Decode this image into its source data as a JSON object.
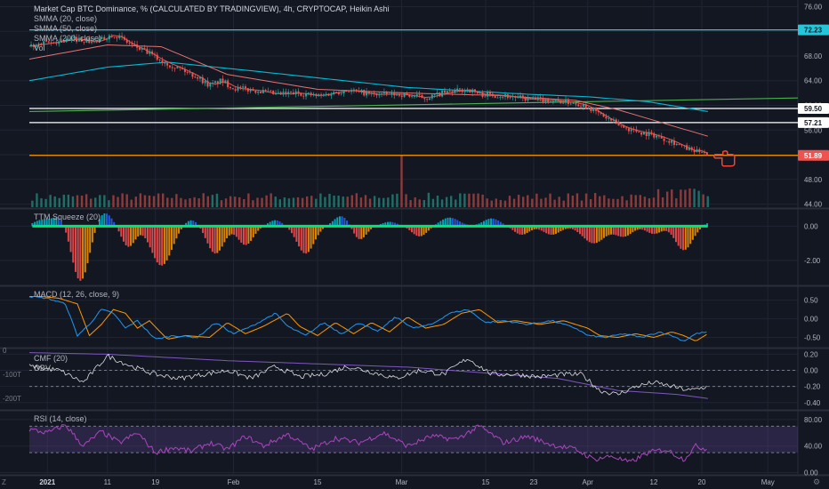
{
  "window": {
    "title": "Market Cap BTC Dominance, % (CALCULATED BY TRADINGVIEW), 4h, CRYPTOCAP, Heikin Ashi"
  },
  "legend": {
    "smma20": "SMMA (20, close)",
    "smma50": "SMMA (50, close)",
    "smma200": "SMMA (200, close)",
    "vol": "Vol"
  },
  "panes": {
    "ttm": "TTM Squeeze (20)",
    "macd": "MACD (12, 26, close, 9)",
    "cmf": "CMF (20)",
    "obv": "OBV",
    "rsi": "RSI (14, close)"
  },
  "corner": {
    "left_label": "Z",
    "right_icon": "gear-icon"
  },
  "colors": {
    "background": "#131722",
    "grid": "#1f2432",
    "up": "#26a69a",
    "down": "#ef5350",
    "smma20": "#ef5350",
    "smma50": "#e57373",
    "smma200": "#00bcd4",
    "trendline": "#4caf50",
    "support": "#ff9800",
    "level_line": "#ffffff",
    "ttm_bull": "#00bcd4",
    "ttm_bull_weak": "#2962ff",
    "ttm_bear": "#ff5252",
    "ttm_bear_weak": "#ff9800",
    "squeeze_dots": "#00e676",
    "macd": "#2196f3",
    "macd_signal": "#ff9800",
    "cmf": "#ffffff",
    "obv": "#7e57c2",
    "rsi": "#ab47bc",
    "rsi_band": "#7e57c2",
    "annotation": "#f44336"
  },
  "chart_data": [
    {
      "type": "candlestick",
      "name": "main",
      "title": "Market Cap BTC Dominance, % (CALCULATED BY TRADINGVIEW), 4h, CRYPTOCAP, Heikin Ashi",
      "x_tick_labels": [
        "2021",
        "11",
        "19",
        "Feb",
        "15",
        "Mar",
        "15",
        "23",
        "Apr",
        "12",
        "20",
        "May"
      ],
      "x_tick_days": [
        0,
        10,
        18,
        31,
        45,
        59,
        73,
        81,
        90,
        101,
        109,
        120
      ],
      "x_range_days": [
        -3,
        125
      ],
      "y_ticks": [
        44,
        48,
        52,
        56,
        60,
        64,
        68,
        72,
        76
      ],
      "ylim": [
        43.5,
        76.5
      ],
      "current_price": 51.89,
      "price_path": {
        "days": [
          -3,
          5,
          8,
          11,
          14,
          17,
          19,
          22,
          25,
          27,
          29,
          31,
          35,
          38,
          42,
          45,
          50,
          54,
          59,
          63,
          66,
          70,
          72,
          76,
          80,
          84,
          88,
          90,
          93,
          96,
          99,
          101,
          104,
          106,
          108,
          109,
          110
        ],
        "values": [
          69.6,
          70.8,
          70.2,
          71.6,
          69.8,
          68.4,
          67.2,
          66.0,
          64.6,
          63.2,
          64.0,
          62.8,
          62.4,
          61.8,
          62.0,
          61.5,
          62.5,
          61.8,
          61.8,
          61.2,
          62.0,
          62.6,
          61.8,
          61.6,
          61.0,
          60.8,
          60.4,
          59.8,
          58.0,
          56.4,
          55.6,
          55.2,
          54.2,
          53.2,
          52.4,
          52.8,
          51.9
        ]
      },
      "horizontal_levels": [
        {
          "value": 72.23,
          "color": "#26c6da",
          "label": "72.23"
        },
        {
          "value": 59.5,
          "color": "#ffffff",
          "label": "59.50"
        },
        {
          "value": 57.21,
          "color": "#ffffff",
          "label": "57.21"
        },
        {
          "value": 51.89,
          "color": "#ff9800",
          "label": "51.89"
        }
      ],
      "trendline": {
        "from": [
          -3,
          59.0
        ],
        "to": [
          125,
          61.2
        ]
      },
      "smma200_path": {
        "days": [
          -3,
          10,
          20,
          35,
          60,
          80,
          90,
          100,
          110
        ],
        "values": [
          64.0,
          66.2,
          67.0,
          65.5,
          62.9,
          61.8,
          61.4,
          60.6,
          59.0
        ]
      },
      "smma50_path": {
        "days": [
          -3,
          10,
          19,
          30,
          45,
          60,
          75,
          88,
          95,
          103,
          110
        ],
        "values": [
          67.5,
          69.8,
          69.5,
          65.0,
          62.6,
          62.0,
          61.6,
          60.8,
          59.3,
          57.0,
          55.0
        ]
      },
      "annotation": "hand-pointer-icon"
    },
    {
      "type": "bar",
      "name": "volume",
      "series": [
        {
          "name": "Vol",
          "spikes": [
            {
              "day": 59,
              "relative_height": 1.0
            }
          ]
        }
      ],
      "typical_relative_height": 0.28
    },
    {
      "type": "bar",
      "name": "ttm_squeeze",
      "title": "TTM Squeeze (20)",
      "y_ticks": [
        0.0,
        -2.0
      ],
      "y_tick_labels": [
        "0.00",
        "-2.00"
      ],
      "ylim": [
        -3.4,
        0.95
      ],
      "pulses": [
        {
          "day": -1,
          "amp": 0.35,
          "w": 1.8
        },
        {
          "day": 2,
          "amp": 0.55,
          "w": 1.8
        },
        {
          "day": 5.5,
          "amp": -3.2,
          "w": 2.0
        },
        {
          "day": 9.5,
          "amp": 0.8,
          "w": 1.8
        },
        {
          "day": 13.5,
          "amp": -1.2,
          "w": 1.6
        },
        {
          "day": 19,
          "amp": -2.3,
          "w": 2.4
        },
        {
          "day": 24,
          "amp": 0.4,
          "w": 1.8
        },
        {
          "day": 28,
          "amp": -1.6,
          "w": 2.0
        },
        {
          "day": 33,
          "amp": -1.1,
          "w": 1.8
        },
        {
          "day": 38,
          "amp": 0.35,
          "w": 1.6
        },
        {
          "day": 43,
          "amp": -1.6,
          "w": 2.0
        },
        {
          "day": 49,
          "amp": 0.6,
          "w": 1.8
        },
        {
          "day": 52,
          "amp": -0.8,
          "w": 1.6
        },
        {
          "day": 57,
          "amp": 0.25,
          "w": 1.8
        },
        {
          "day": 62,
          "amp": -0.6,
          "w": 1.8
        },
        {
          "day": 67,
          "amp": 0.5,
          "w": 2.2
        },
        {
          "day": 74,
          "amp": 0.45,
          "w": 2.0
        },
        {
          "day": 79,
          "amp": -0.5,
          "w": 1.8
        },
        {
          "day": 84,
          "amp": -0.5,
          "w": 2.0
        },
        {
          "day": 91,
          "amp": -1.0,
          "w": 2.6
        },
        {
          "day": 96,
          "amp": -0.6,
          "w": 2.0
        },
        {
          "day": 101,
          "amp": -0.45,
          "w": 1.8
        },
        {
          "day": 106,
          "amp": -1.4,
          "w": 2.0
        },
        {
          "day": 110,
          "amp": 0.2,
          "w": 1.0
        }
      ]
    },
    {
      "type": "line",
      "name": "macd",
      "title": "MACD (12, 26, close, 9)",
      "y_ticks": [
        0.5,
        0.0,
        -0.5
      ],
      "y_tick_labels": [
        "0.50",
        "0.00",
        "-0.50"
      ],
      "ylim": [
        -0.75,
        0.85
      ],
      "series": [
        {
          "name": "MACD",
          "x": [
            -3,
            0,
            3,
            5,
            7,
            9,
            11,
            13,
            15,
            18,
            21,
            25,
            28,
            31,
            34,
            38,
            40,
            43,
            46,
            49,
            52,
            55,
            58,
            61,
            64,
            67,
            70,
            73,
            76,
            80,
            84,
            88,
            90,
            93,
            96,
            99,
            102,
            104,
            106,
            108,
            110
          ],
          "values": [
            0.6,
            0.55,
            0.4,
            -0.45,
            -0.15,
            0.25,
            0.15,
            -0.25,
            -0.05,
            -0.55,
            -0.45,
            -0.5,
            -0.1,
            -0.4,
            -0.2,
            0.15,
            -0.2,
            -0.45,
            -0.1,
            -0.4,
            -0.1,
            -0.35,
            0.05,
            -0.25,
            -0.15,
            0.15,
            0.25,
            -0.1,
            -0.05,
            -0.15,
            -0.05,
            -0.25,
            -0.45,
            -0.5,
            -0.4,
            -0.5,
            -0.35,
            -0.45,
            -0.6,
            -0.4,
            -0.35
          ]
        },
        {
          "name": "Signal",
          "lag_days": 2
        }
      ]
    },
    {
      "type": "line",
      "name": "cmf_obv",
      "title": "CMF (20)",
      "y_ticks": [
        0.2,
        0.0,
        -0.2,
        -0.4
      ],
      "y_tick_labels": [
        "0.20",
        "0.00",
        "-0.20",
        "-0.40"
      ],
      "ylim": [
        -0.48,
        0.26
      ],
      "left_axis_labels": [
        "0",
        "-100T",
        "-200T"
      ],
      "series": [
        {
          "name": "CMF",
          "x": [
            -3,
            2,
            6,
            10,
            14,
            18,
            22,
            26,
            30,
            34,
            38,
            42,
            46,
            50,
            54,
            58,
            62,
            66,
            70,
            74,
            78,
            82,
            86,
            89,
            92,
            95,
            98,
            101,
            104,
            107,
            110
          ],
          "values": [
            0.05,
            0.0,
            -0.15,
            0.18,
            0.05,
            -0.05,
            -0.1,
            -0.05,
            0.0,
            -0.1,
            0.05,
            -0.08,
            -0.05,
            0.05,
            -0.02,
            -0.1,
            0.0,
            -0.05,
            0.15,
            -0.05,
            -0.05,
            -0.08,
            -0.05,
            -0.05,
            -0.25,
            -0.3,
            -0.2,
            -0.15,
            -0.2,
            -0.25,
            -0.2
          ]
        },
        {
          "name": "OBV",
          "x": [
            -3,
            10,
            30,
            60,
            85,
            95,
            105,
            110
          ],
          "values": [
            0.22,
            0.2,
            0.12,
            0.04,
            -0.1,
            -0.25,
            -0.3,
            -0.35
          ]
        }
      ]
    },
    {
      "type": "line",
      "name": "rsi",
      "title": "RSI (14, close)",
      "y_ticks": [
        80,
        40,
        0
      ],
      "y_tick_labels": [
        "80.00",
        "40.00",
        "0.00"
      ],
      "ylim": [
        -2,
        92
      ],
      "band": [
        30,
        70
      ],
      "series": [
        {
          "name": "RSI",
          "x": [
            -3,
            0,
            3,
            6,
            9,
            12,
            15,
            18,
            21,
            24,
            27,
            30,
            33,
            36,
            40,
            44,
            48,
            52,
            56,
            60,
            64,
            68,
            72,
            76,
            80,
            84,
            88,
            91,
            94,
            97,
            100,
            103,
            106,
            108,
            110
          ],
          "values": [
            65,
            60,
            72,
            40,
            62,
            45,
            60,
            30,
            38,
            32,
            45,
            35,
            55,
            40,
            58,
            35,
            52,
            45,
            60,
            40,
            55,
            50,
            70,
            45,
            55,
            42,
            35,
            20,
            25,
            15,
            30,
            35,
            20,
            40,
            35
          ]
        }
      ]
    }
  ]
}
